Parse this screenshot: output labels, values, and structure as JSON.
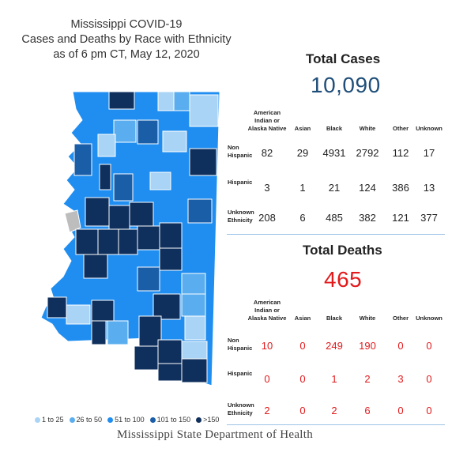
{
  "title": {
    "line1": "Mississippi COVID-19",
    "line2": "Cases and Deaths by Race with Ethnicity",
    "line3": "as of 6 pm CT, May 12, 2020"
  },
  "cases": {
    "heading": "Total Cases",
    "total": "10,090",
    "total_color": "#1f4e79",
    "value_color": "#222222",
    "columns": [
      "American Indian or Alaska Native",
      "Asian",
      "Black",
      "White",
      "Other",
      "Unknown"
    ],
    "rows": [
      {
        "label": "Non Hispanic",
        "values": [
          "82",
          "29",
          "4931",
          "2792",
          "112",
          "17"
        ]
      },
      {
        "label": "Hispanic",
        "values": [
          "3",
          "1",
          "21",
          "124",
          "386",
          "13"
        ]
      },
      {
        "label": "Unknown Ethnicity",
        "values": [
          "208",
          "6",
          "485",
          "382",
          "121",
          "377"
        ]
      }
    ]
  },
  "deaths": {
    "heading": "Total Deaths",
    "total": "465",
    "total_color": "#e31a1c",
    "value_color": "#e31a1c",
    "columns": [
      "American Indian or Alaska Native",
      "Asian",
      "Black",
      "White",
      "Other",
      "Unknown"
    ],
    "rows": [
      {
        "label": "Non Hispanic",
        "values": [
          "10",
          "0",
          "249",
          "190",
          "0",
          "0"
        ]
      },
      {
        "label": "Hispanic",
        "values": [
          "0",
          "0",
          "1",
          "2",
          "3",
          "0"
        ]
      },
      {
        "label": "Unknown Ethnicity",
        "values": [
          "2",
          "0",
          "2",
          "6",
          "0",
          "0"
        ]
      }
    ]
  },
  "legend": [
    {
      "label": "1 to 25",
      "color": "#a9d4f5"
    },
    {
      "label": "26 to 50",
      "color": "#5aaeef"
    },
    {
      "label": "51 to 100",
      "color": "#1f8ef0"
    },
    {
      "label": "101 to 150",
      "color": "#1b5ea8"
    },
    {
      "label": ">150",
      "color": "#0f2f5c"
    }
  ],
  "footer": "Mississippi State Department of Health"
}
